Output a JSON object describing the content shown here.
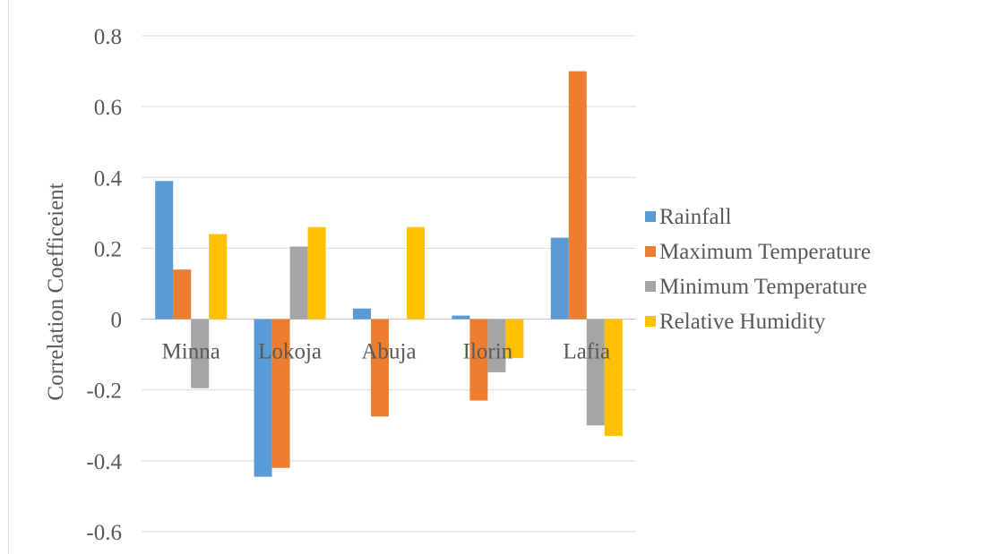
{
  "chart_data": {
    "type": "bar",
    "title": "",
    "xlabel": "",
    "ylabel": "Correlation  Coefficeient",
    "ylim": [
      -0.6,
      0.8
    ],
    "yticks": [
      "0.8",
      "0.6",
      "0.4",
      "0.2",
      "0",
      "-0.2",
      "-0.4",
      "-0.6"
    ],
    "categories": [
      "Minna",
      "Lokoja",
      "Abuja",
      "Ilorin",
      "Lafia"
    ],
    "series": [
      {
        "name": "Rainfall",
        "color": "#5b9bd5",
        "values": [
          0.39,
          -0.445,
          0.03,
          0.01,
          0.23
        ]
      },
      {
        "name": "Maximum Temperature",
        "color": "#ed7d31",
        "values": [
          0.14,
          -0.42,
          -0.275,
          -0.23,
          0.7
        ]
      },
      {
        "name": "Minimum Temperature",
        "color": "#a5a5a5",
        "values": [
          -0.195,
          0.205,
          0.0,
          -0.15,
          -0.3
        ]
      },
      {
        "name": "Relative Humidity",
        "color": "#ffc000",
        "values": [
          0.24,
          0.26,
          0.26,
          -0.11,
          -0.33
        ]
      }
    ],
    "grid": true,
    "legend": "right"
  }
}
